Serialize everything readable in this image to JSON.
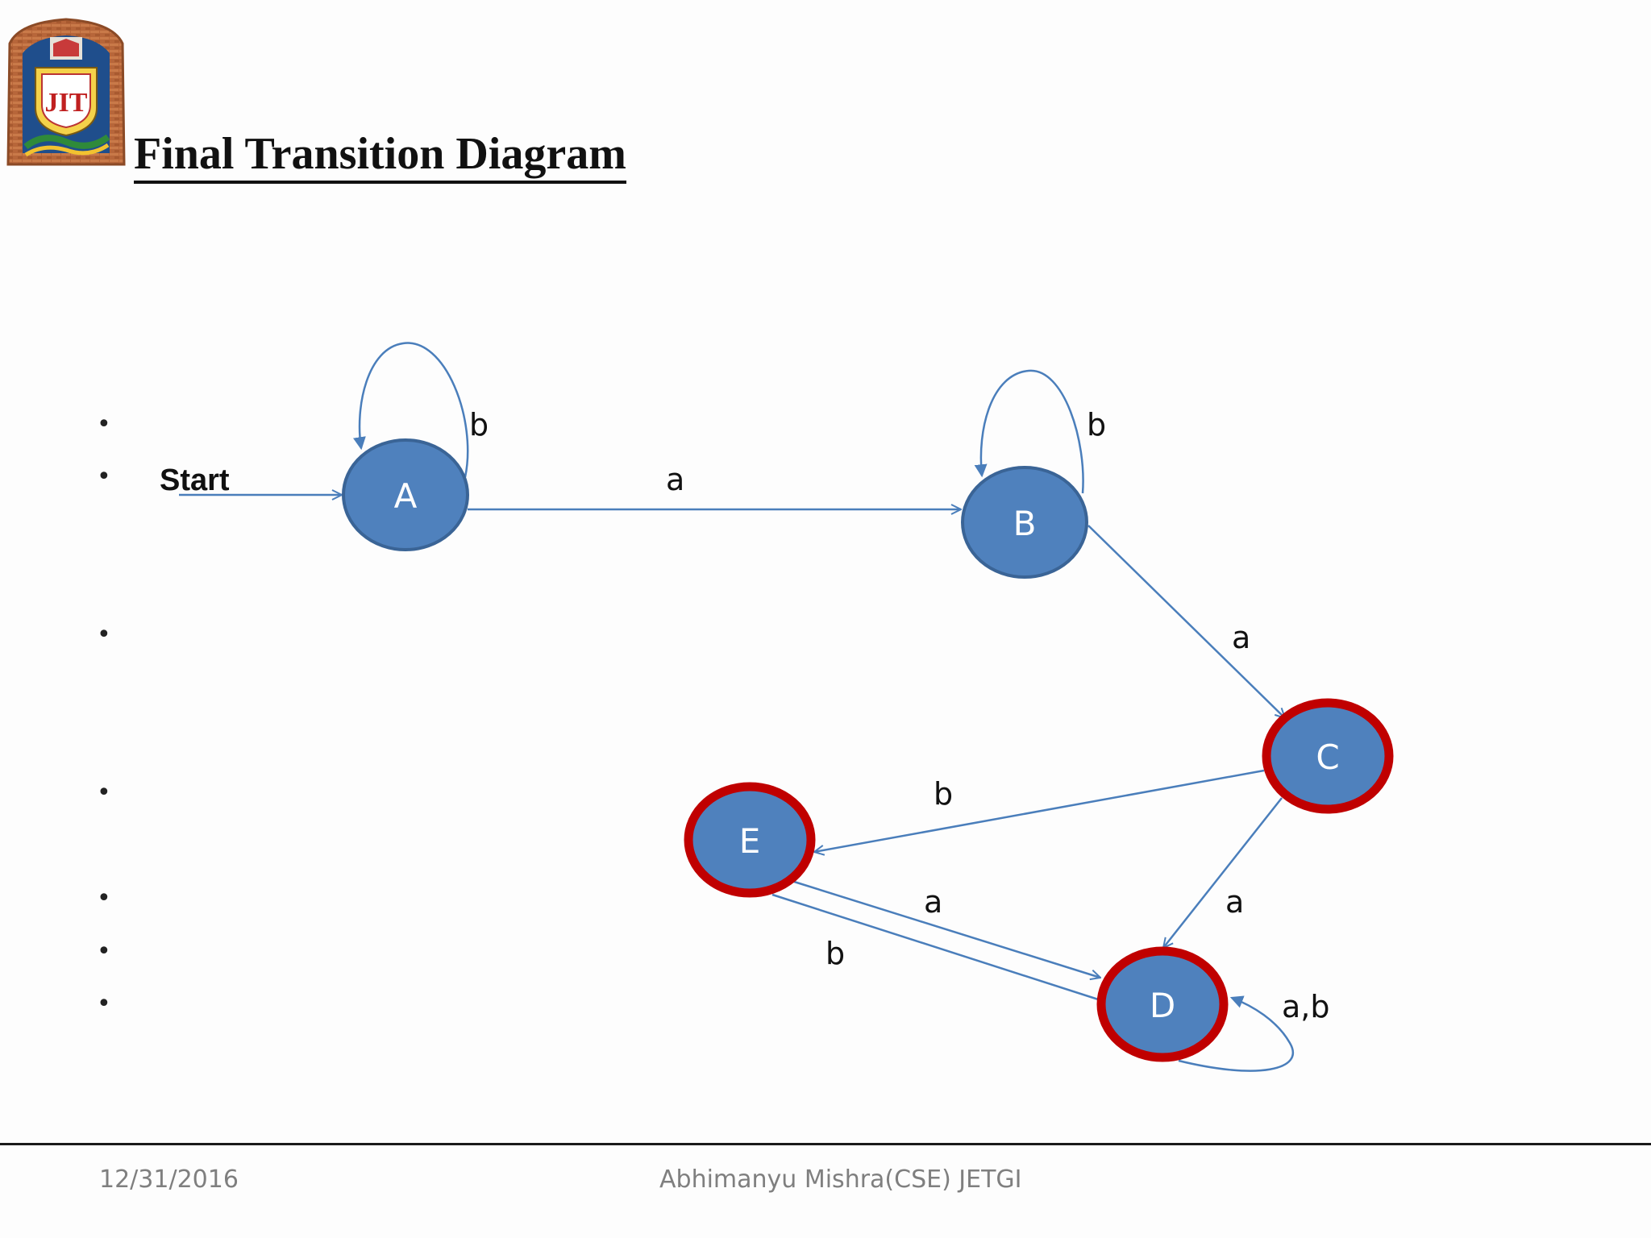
{
  "slide": {
    "title": "Final Transition Diagram",
    "logo_text": "JIT"
  },
  "diagram": {
    "start_label": "Start",
    "states": [
      {
        "id": "A",
        "label": "A",
        "final": false
      },
      {
        "id": "B",
        "label": "B",
        "final": false
      },
      {
        "id": "C",
        "label": "C",
        "final": true
      },
      {
        "id": "D",
        "label": "D",
        "final": true
      },
      {
        "id": "E",
        "label": "E",
        "final": true
      }
    ],
    "transitions": [
      {
        "from": "A",
        "to": "A",
        "label": "b"
      },
      {
        "from": "A",
        "to": "B",
        "label": "a"
      },
      {
        "from": "B",
        "to": "B",
        "label": "b"
      },
      {
        "from": "B",
        "to": "C",
        "label": "a"
      },
      {
        "from": "C",
        "to": "E",
        "label": "b"
      },
      {
        "from": "C",
        "to": "D",
        "label": "a"
      },
      {
        "from": "E",
        "to": "D",
        "label": "a"
      },
      {
        "from": "E",
        "to": "D",
        "label": "b"
      },
      {
        "from": "D",
        "to": "D",
        "label": "a,b"
      }
    ],
    "colors": {
      "state_fill": "#4f81bd",
      "state_stroke": "#3a6496",
      "final_ring": "#c00000",
      "edge": "#4a7ebb",
      "state_text": "#ffffff"
    }
  },
  "bullets": [
    "•",
    "•",
    "•",
    "•",
    "•",
    "•",
    "•"
  ],
  "footer": {
    "date": "12/31/2016",
    "author": "Abhimanyu Mishra(CSE) JETGI"
  }
}
